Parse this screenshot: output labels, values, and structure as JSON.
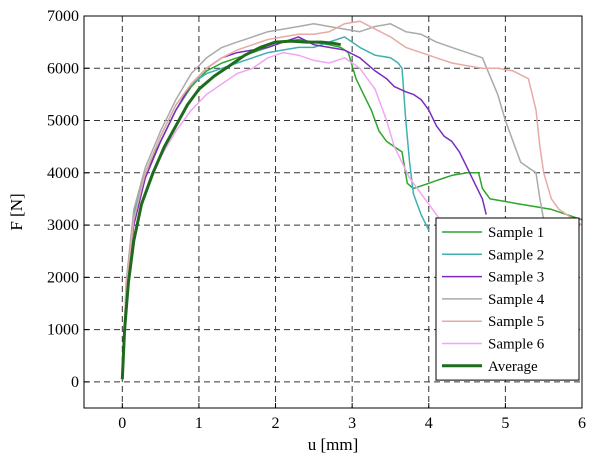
{
  "chart_data": {
    "type": "line",
    "xlabel": "u [mm]",
    "ylabel": "F [N]",
    "xlim": [
      -0.5,
      6
    ],
    "ylim": [
      -500,
      7000
    ],
    "xticks": [
      0,
      1,
      2,
      3,
      4,
      5,
      6
    ],
    "yticks": [
      0,
      1000,
      2000,
      3000,
      4000,
      5000,
      6000,
      7000
    ],
    "grid": true,
    "grid_style": "dashed",
    "legend_position": "lower-right",
    "series": [
      {
        "name": "Sample 1",
        "color": "#2ca62c",
        "width": 1.5,
        "x": [
          0,
          0.05,
          0.15,
          0.3,
          0.5,
          0.7,
          0.9,
          1.1,
          1.3,
          1.5,
          1.7,
          1.9,
          2.1,
          2.3,
          2.5,
          2.7,
          2.85,
          2.95,
          3.05,
          3.15,
          3.25,
          3.35,
          3.45,
          3.55,
          3.65,
          3.72,
          3.8,
          3.9,
          4.0,
          4.1,
          4.2,
          4.3,
          4.5,
          4.65,
          4.7,
          4.8,
          5.0,
          5.2,
          5.4,
          5.6,
          5.8,
          6.0
        ],
        "y": [
          50,
          1700,
          3100,
          4000,
          4600,
          5200,
          5650,
          5950,
          6100,
          6200,
          6300,
          6400,
          6500,
          6550,
          6500,
          6450,
          6400,
          6300,
          5800,
          5500,
          5200,
          4800,
          4600,
          4500,
          4400,
          3800,
          3700,
          3750,
          3800,
          3850,
          3900,
          3950,
          4000,
          4000,
          3700,
          3500,
          3450,
          3400,
          3350,
          3300,
          3200,
          3100
        ]
      },
      {
        "name": "Sample 2",
        "color": "#40b0b0",
        "width": 1.5,
        "x": [
          0,
          0.05,
          0.15,
          0.3,
          0.5,
          0.7,
          0.9,
          1.1,
          1.3,
          1.5,
          1.7,
          1.9,
          2.1,
          2.3,
          2.5,
          2.7,
          2.9,
          3.1,
          3.3,
          3.5,
          3.6,
          3.65,
          3.7,
          3.75,
          3.8,
          3.9,
          4.0
        ],
        "y": [
          50,
          1800,
          3200,
          4000,
          4700,
          5300,
          5700,
          5900,
          6000,
          6100,
          6200,
          6300,
          6350,
          6400,
          6400,
          6500,
          6600,
          6400,
          6250,
          6200,
          6100,
          6000,
          5000,
          4200,
          3600,
          3200,
          2900
        ]
      },
      {
        "name": "Sample 3",
        "color": "#7b2cbf",
        "width": 1.5,
        "x": [
          0,
          0.05,
          0.15,
          0.3,
          0.5,
          0.7,
          0.9,
          1.1,
          1.3,
          1.5,
          1.7,
          1.9,
          2.1,
          2.3,
          2.5,
          2.7,
          2.9,
          3.1,
          3.3,
          3.45,
          3.55,
          3.7,
          3.8,
          3.9,
          4.0,
          4.1,
          4.2,
          4.3,
          4.4,
          4.5,
          4.6,
          4.7,
          4.75
        ],
        "y": [
          50,
          1700,
          3000,
          3900,
          4600,
          5200,
          5700,
          6000,
          6200,
          6300,
          6350,
          6400,
          6500,
          6600,
          6450,
          6400,
          6350,
          6200,
          5950,
          5800,
          5650,
          5550,
          5500,
          5400,
          5200,
          4900,
          4700,
          4600,
          4400,
          4100,
          3800,
          3500,
          3200
        ]
      },
      {
        "name": "Sample 4",
        "color": "#aaaaaa",
        "width": 1.5,
        "x": [
          0,
          0.05,
          0.15,
          0.3,
          0.5,
          0.7,
          0.9,
          1.1,
          1.3,
          1.5,
          1.7,
          1.9,
          2.1,
          2.3,
          2.5,
          2.7,
          2.9,
          3.1,
          3.3,
          3.5,
          3.7,
          3.9,
          4.1,
          4.3,
          4.5,
          4.7,
          4.9,
          5.0,
          5.1,
          5.2,
          5.3,
          5.4,
          5.45,
          5.5
        ],
        "y": [
          50,
          1900,
          3300,
          4100,
          4800,
          5400,
          5900,
          6200,
          6400,
          6500,
          6600,
          6700,
          6750,
          6800,
          6850,
          6800,
          6750,
          6700,
          6800,
          6850,
          6700,
          6650,
          6500,
          6400,
          6300,
          6200,
          5500,
          5000,
          4600,
          4200,
          4100,
          4000,
          3500,
          3100
        ]
      },
      {
        "name": "Sample 5",
        "color": "#e8aaa6",
        "width": 1.5,
        "x": [
          0,
          0.05,
          0.15,
          0.3,
          0.5,
          0.7,
          0.9,
          1.1,
          1.3,
          1.5,
          1.7,
          1.9,
          2.1,
          2.3,
          2.5,
          2.7,
          2.9,
          3.1,
          3.3,
          3.5,
          3.7,
          3.9,
          4.1,
          4.3,
          4.5,
          4.7,
          4.9,
          5.1,
          5.3,
          5.4,
          5.45,
          5.5,
          5.6,
          5.7,
          5.8,
          5.9,
          6.0
        ],
        "y": [
          50,
          1800,
          3100,
          4000,
          4700,
          5300,
          5700,
          6000,
          6200,
          6350,
          6450,
          6550,
          6600,
          6650,
          6650,
          6700,
          6850,
          6900,
          6750,
          6600,
          6400,
          6300,
          6200,
          6100,
          6050,
          6000,
          6000,
          5950,
          5800,
          5200,
          4500,
          4000,
          3500,
          3300,
          3200,
          3100,
          3000
        ]
      },
      {
        "name": "Sample 6",
        "color": "#f2a6f2",
        "width": 1.5,
        "x": [
          0,
          0.05,
          0.15,
          0.3,
          0.5,
          0.7,
          0.9,
          1.1,
          1.3,
          1.5,
          1.7,
          1.9,
          2.1,
          2.3,
          2.5,
          2.7,
          2.9,
          3.1,
          3.3,
          3.45,
          3.55,
          3.65,
          3.75,
          3.9,
          4.05,
          4.2,
          4.35,
          4.5,
          4.6
        ],
        "y": [
          50,
          1500,
          2800,
          3600,
          4300,
          4800,
          5200,
          5500,
          5700,
          5900,
          6000,
          6200,
          6300,
          6250,
          6150,
          6100,
          6200,
          6000,
          5600,
          5000,
          4500,
          4200,
          3900,
          3600,
          3300,
          3000,
          2700,
          2400,
          2100
        ]
      },
      {
        "name": "Average",
        "color": "#1e6b1e",
        "width": 3,
        "x": [
          0,
          0.03,
          0.08,
          0.15,
          0.25,
          0.4,
          0.55,
          0.7,
          0.85,
          1.0,
          1.2,
          1.4,
          1.6,
          1.8,
          2.0,
          2.2,
          2.4,
          2.6,
          2.75,
          2.85
        ],
        "y": [
          50,
          1000,
          1900,
          2700,
          3400,
          4000,
          4500,
          4900,
          5300,
          5600,
          5850,
          6050,
          6250,
          6400,
          6500,
          6520,
          6500,
          6500,
          6480,
          6450
        ]
      }
    ]
  }
}
